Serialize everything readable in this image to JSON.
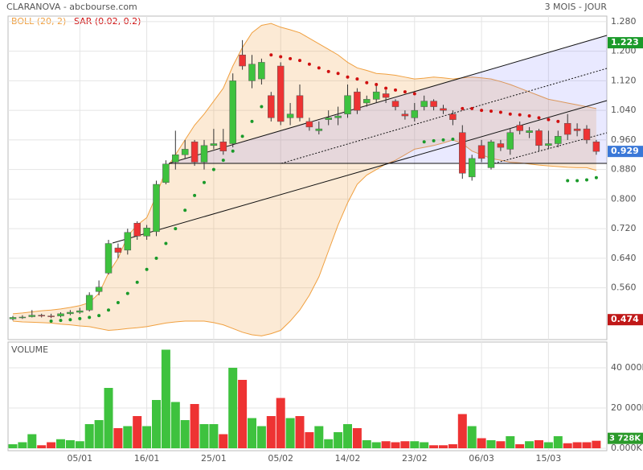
{
  "chart_data": {
    "type": "candlestick",
    "title": "CLARANOVA - abcbourse.com",
    "period": "3 MOIS - JOUR",
    "indicators": [
      {
        "name": "BOLL (20, 2)",
        "color": "#f0a040"
      },
      {
        "name": "SAR (0.02, 0.2)",
        "color": "#d01010"
      }
    ],
    "volume_title": "VOLUME",
    "up_color": "#3ec23e",
    "down_color": "#ee3333",
    "categories": [
      null,
      null,
      null,
      null,
      null,
      null,
      null,
      "05/01",
      null,
      null,
      null,
      null,
      null,
      null,
      "16/01",
      null,
      null,
      null,
      null,
      null,
      null,
      "25/01",
      null,
      null,
      null,
      null,
      null,
      null,
      "05/02",
      null,
      null,
      null,
      null,
      null,
      null,
      "14/02",
      null,
      null,
      null,
      null,
      null,
      null,
      "23/02",
      null,
      null,
      null,
      null,
      null,
      null,
      "06/03",
      null,
      null,
      null,
      null,
      null,
      null,
      "15/03",
      null,
      null,
      null,
      null,
      null
    ],
    "open": [
      0.476,
      0.48,
      0.482,
      0.486,
      0.484,
      0.484,
      0.49,
      0.494,
      0.5,
      0.55,
      0.6,
      0.668,
      0.662,
      0.735,
      0.7,
      0.712,
      0.845,
      0.9,
      0.92,
      0.955,
      0.9,
      0.945,
      0.955,
      0.95,
      1.19,
      1.12,
      1.125,
      1.08,
      1.16,
      1.02,
      1.08,
      1.01,
      0.985,
      1.015,
      1.02,
      1.03,
      1.09,
      1.06,
      1.07,
      1.085,
      1.065,
      1.03,
      1.02,
      1.05,
      1.065,
      1.045,
      1.03,
      0.98,
      0.86,
      0.945,
      0.885,
      0.95,
      0.935,
      1.0,
      0.98,
      0.985,
      0.945,
      0.95,
      1.005,
      0.99,
      0.99,
      0.955
    ],
    "high": [
      0.484,
      0.486,
      0.5,
      0.49,
      0.49,
      0.494,
      0.5,
      0.506,
      0.548,
      0.58,
      0.69,
      0.68,
      0.72,
      0.74,
      0.73,
      0.85,
      0.905,
      0.985,
      0.96,
      0.96,
      0.96,
      0.99,
      0.99,
      1.14,
      1.23,
      1.19,
      1.18,
      1.09,
      1.17,
      1.06,
      1.11,
      1.02,
      1.01,
      1.04,
      1.05,
      1.11,
      1.1,
      1.08,
      1.11,
      1.095,
      1.07,
      1.04,
      1.06,
      1.08,
      1.07,
      1.055,
      1.04,
      1.0,
      0.92,
      0.96,
      0.96,
      0.96,
      0.99,
      1.01,
      0.995,
      0.99,
      0.985,
      0.985,
      1.03,
      1.005,
      1.0,
      0.96
    ],
    "low": [
      0.472,
      0.476,
      0.48,
      0.48,
      0.478,
      0.48,
      0.486,
      0.49,
      0.496,
      0.54,
      0.596,
      0.64,
      0.65,
      0.69,
      0.69,
      0.7,
      0.84,
      0.88,
      0.91,
      0.89,
      0.88,
      0.935,
      0.92,
      0.94,
      1.15,
      1.1,
      1.11,
      1.01,
      1.0,
      1.0,
      1.01,
      0.985,
      0.975,
      1.0,
      1.0,
      1.02,
      1.03,
      1.05,
      1.06,
      1.06,
      1.04,
      1.015,
      1.01,
      1.04,
      1.04,
      1.03,
      1.0,
      0.855,
      0.85,
      0.9,
      0.88,
      0.93,
      0.92,
      0.975,
      0.965,
      0.93,
      0.935,
      0.94,
      0.96,
      0.97,
      0.95,
      0.92
    ],
    "close": [
      0.48,
      0.481,
      0.486,
      0.484,
      0.483,
      0.49,
      0.494,
      0.498,
      0.54,
      0.562,
      0.68,
      0.656,
      0.71,
      0.7,
      0.722,
      0.84,
      0.895,
      0.92,
      0.935,
      0.9,
      0.945,
      0.95,
      0.93,
      1.12,
      1.16,
      1.165,
      1.17,
      1.02,
      1.01,
      1.03,
      1.02,
      0.995,
      0.99,
      1.02,
      1.025,
      1.08,
      1.04,
      1.07,
      1.09,
      1.075,
      1.05,
      1.025,
      1.04,
      1.065,
      1.05,
      1.04,
      1.015,
      0.87,
      0.91,
      0.91,
      0.955,
      0.94,
      0.98,
      0.985,
      0.985,
      0.945,
      0.95,
      0.97,
      0.975,
      0.985,
      0.96,
      0.929
    ],
    "boll_upper": [
      0.49,
      0.492,
      0.495,
      0.498,
      0.5,
      0.503,
      0.507,
      0.512,
      0.52,
      0.545,
      0.6,
      0.64,
      0.7,
      0.73,
      0.75,
      0.81,
      0.88,
      0.92,
      0.96,
      1.0,
      1.03,
      1.065,
      1.1,
      1.16,
      1.21,
      1.25,
      1.27,
      1.275,
      1.265,
      1.258,
      1.25,
      1.235,
      1.22,
      1.205,
      1.19,
      1.17,
      1.155,
      1.148,
      1.14,
      1.138,
      1.135,
      1.13,
      1.125,
      1.127,
      1.13,
      1.128,
      1.125,
      1.128,
      1.13,
      1.128,
      1.125,
      1.118,
      1.11,
      1.1,
      1.09,
      1.08,
      1.07,
      1.065,
      1.06,
      1.055,
      1.05,
      1.045
    ],
    "boll_lower": [
      0.47,
      0.468,
      0.467,
      0.466,
      0.465,
      0.462,
      0.46,
      0.457,
      0.455,
      0.45,
      0.445,
      0.447,
      0.45,
      0.452,
      0.455,
      0.46,
      0.465,
      0.468,
      0.47,
      0.47,
      0.47,
      0.466,
      0.46,
      0.45,
      0.44,
      0.433,
      0.43,
      0.436,
      0.445,
      0.47,
      0.5,
      0.54,
      0.59,
      0.66,
      0.73,
      0.79,
      0.84,
      0.865,
      0.88,
      0.895,
      0.905,
      0.92,
      0.935,
      0.94,
      0.945,
      0.952,
      0.96,
      0.95,
      0.93,
      0.92,
      0.91,
      0.905,
      0.9,
      0.898,
      0.895,
      0.892,
      0.89,
      0.888,
      0.886,
      0.885,
      0.885,
      0.878
    ],
    "sar": [
      null,
      null,
      null,
      null,
      0.47,
      0.472,
      0.474,
      0.477,
      0.48,
      0.485,
      0.5,
      0.52,
      0.545,
      0.575,
      0.61,
      0.64,
      0.68,
      0.72,
      0.77,
      0.81,
      0.845,
      0.88,
      0.905,
      0.93,
      0.97,
      1.01,
      1.05,
      1.19,
      1.185,
      1.18,
      1.175,
      1.165,
      1.155,
      1.145,
      1.14,
      1.13,
      1.125,
      1.115,
      1.11,
      1.1,
      1.095,
      1.09,
      1.085,
      0.955,
      0.958,
      0.96,
      0.962,
      1.045,
      1.045,
      1.04,
      1.038,
      1.035,
      1.03,
      1.028,
      1.025,
      1.02,
      1.015,
      1.01,
      0.85,
      0.85,
      0.852,
      0.858
    ],
    "volume": [
      2000,
      3000,
      7000,
      1500,
      3000,
      4500,
      4000,
      3500,
      12000,
      14000,
      30000,
      10000,
      11000,
      16000,
      11000,
      24000,
      49000,
      23000,
      14000,
      22000,
      12000,
      12000,
      7000,
      40000,
      34000,
      15000,
      11000,
      16000,
      25000,
      15000,
      16000,
      8000,
      11000,
      4500,
      8000,
      12000,
      10000,
      4000,
      3000,
      3500,
      3000,
      3500,
      3500,
      3000,
      1500,
      1500,
      2000,
      17000,
      11000,
      5000,
      4000,
      3500,
      6000,
      2000,
      3500,
      4000,
      3000,
      6000,
      2500,
      3000,
      3000,
      3728
    ],
    "volume_last_label": "3 728K",
    "ylim": [
      0.42,
      1.295
    ],
    "yticks": [
      {
        "value": 1.28,
        "label": "1.280"
      },
      {
        "value": 1.2,
        "label": "1.200"
      },
      {
        "value": 1.12,
        "label": "1.120"
      },
      {
        "value": 1.04,
        "label": "1.040"
      },
      {
        "value": 0.96,
        "label": "0.960"
      },
      {
        "value": 0.88,
        "label": "0.880"
      },
      {
        "value": 0.8,
        "label": "0.800"
      },
      {
        "value": 0.72,
        "label": "0.720"
      },
      {
        "value": 0.64,
        "label": "0.640"
      },
      {
        "value": 0.56,
        "label": "0.560"
      }
    ],
    "vlim": [
      0,
      52800
    ],
    "vticks": [
      {
        "value": 40000,
        "label": "40 000K"
      },
      {
        "value": 20000,
        "label": "20 000K"
      },
      {
        "value": 0,
        "label": "0.000K"
      }
    ],
    "price_markers": [
      {
        "value": 1.223,
        "color": "#1a9a2a"
      },
      {
        "value": 0.929,
        "color": "#3a78d8"
      },
      {
        "value": 0.474,
        "color": "#c01818"
      }
    ],
    "grid": true
  }
}
